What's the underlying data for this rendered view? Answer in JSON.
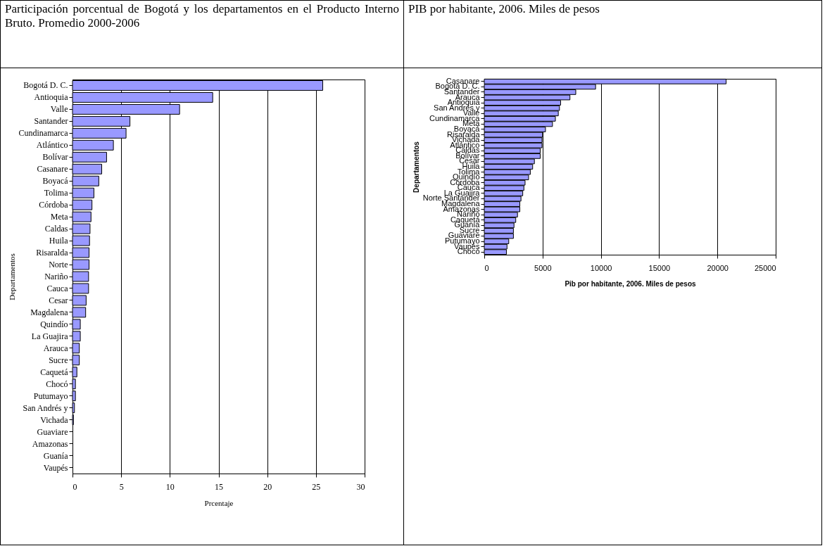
{
  "chart_data": [
    {
      "type": "bar",
      "orientation": "horizontal",
      "title": "Participación porcentual de Bogotá y los departamentos en el Producto Interno Bruto. Promedio 2000-2006",
      "xlabel": "Prcentaje",
      "ylabel": "Departamentos",
      "color": "#9999ff",
      "grid": "x",
      "xlim": [
        0,
        30
      ],
      "xticks": [
        0,
        5,
        10,
        15,
        20,
        25,
        30
      ],
      "categories": [
        "Bogotá D. C.",
        "Antioquia",
        "Valle",
        "Santander",
        "Cundinamarca",
        "Atlántico",
        "Bolívar",
        "Casanare",
        "Boyacá",
        "Tolima",
        "Córdoba",
        "Meta",
        "Caldas",
        "Huila",
        "Risaralda",
        "Norte",
        "Nariño",
        "Cauca",
        "Cesar",
        "Magdalena",
        "Quindío",
        "La Guajira",
        "Arauca",
        "Sucre",
        "Caquetá",
        "Chocó",
        "Putumayo",
        "San Andrés y",
        "Vichada",
        "Guaviare",
        "Amazonas",
        "Guanía",
        "Vaupés"
      ],
      "values": [
        25.7,
        14.4,
        11.0,
        5.9,
        5.5,
        4.2,
        3.5,
        3.0,
        2.7,
        2.2,
        2.0,
        1.9,
        1.8,
        1.75,
        1.7,
        1.7,
        1.65,
        1.65,
        1.4,
        1.35,
        0.8,
        0.8,
        0.7,
        0.7,
        0.45,
        0.3,
        0.3,
        0.2,
        0.1,
        0,
        0,
        0,
        0
      ]
    },
    {
      "type": "bar",
      "orientation": "horizontal",
      "title": "PIB por habitante, 2006. Miles de pesos",
      "xlabel": "Pib por habitante, 2006. Miles de pesos",
      "ylabel": "Departamentos",
      "color": "#9999ff",
      "grid": "x",
      "xlim": [
        0,
        25000
      ],
      "xticks": [
        0,
        5000,
        10000,
        15000,
        20000,
        25000
      ],
      "categories": [
        "Casanare",
        "Bogotá D. C.",
        "Santander",
        "Arauca",
        "Antioquia",
        "San Andrés y",
        "Valle",
        "Cundinamarca",
        "Meta",
        "Boyacá",
        "Risaralda",
        "Vichada",
        "Atlántico",
        "Caldas",
        "Bolívar",
        "Cesar",
        "Huila",
        "Tolima",
        "Quindío",
        "Córdoba",
        "Cauca",
        "La Guajira",
        "Norte Santander",
        "Magdalena",
        "Amazonas",
        "Nariño",
        "Caquetá",
        "Guanía",
        "Sucre",
        "Guaviare",
        "Putumayo",
        "Vaupés",
        "Chocó"
      ],
      "values": [
        20750,
        9550,
        7850,
        7350,
        6550,
        6450,
        6350,
        6100,
        5850,
        5250,
        5000,
        4950,
        4950,
        4800,
        4800,
        4300,
        4150,
        3950,
        3800,
        3500,
        3400,
        3300,
        3150,
        3050,
        3050,
        2850,
        2700,
        2550,
        2500,
        2500,
        2100,
        1950,
        1900
      ]
    }
  ]
}
